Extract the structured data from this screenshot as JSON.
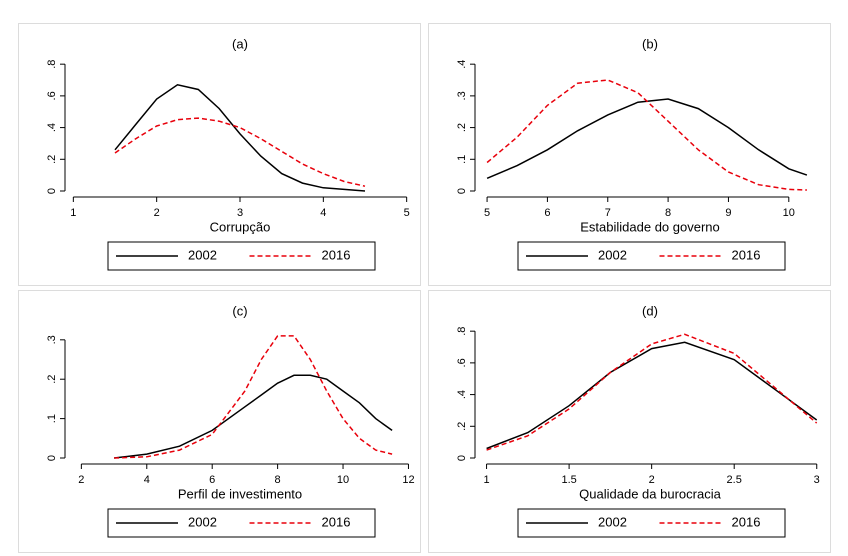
{
  "chart_data": [
    {
      "type": "line",
      "title": "(a)",
      "xlabel": "Corrupção",
      "x": [
        1.5,
        1.75,
        2,
        2.25,
        2.5,
        2.75,
        3,
        3.25,
        3.5,
        3.75,
        4,
        4.25,
        4.5
      ],
      "series": [
        {
          "name": "2002",
          "color": "#000000",
          "line_style": "solid",
          "values": [
            0.26,
            0.42,
            0.58,
            0.67,
            0.64,
            0.52,
            0.36,
            0.22,
            0.11,
            0.05,
            0.02,
            0.01,
            0.0
          ]
        },
        {
          "name": "2016",
          "color": "#e8000b",
          "line_style": "dashed",
          "values": [
            0.24,
            0.33,
            0.41,
            0.45,
            0.46,
            0.44,
            0.4,
            0.33,
            0.25,
            0.17,
            0.11,
            0.06,
            0.03
          ]
        }
      ],
      "xlim": [
        0.9,
        5.1
      ],
      "xticks": [
        1,
        2,
        3,
        4,
        5
      ],
      "ylim": [
        0,
        0.82
      ],
      "yticks": [
        0,
        {
          "value": 0.2,
          "label": ".2"
        },
        {
          "value": 0.4,
          "label": ".4"
        },
        {
          "value": 0.6,
          "label": ".6"
        },
        {
          "value": 0.8,
          "label": ".8"
        }
      ],
      "legend": "bottom"
    },
    {
      "type": "line",
      "title": "(b)",
      "xlabel": "Estabilidade do governo",
      "x": [
        5,
        5.5,
        6,
        6.5,
        7,
        7.5,
        8,
        8.5,
        9,
        9.5,
        10,
        10.3
      ],
      "series": [
        {
          "name": "2002",
          "color": "#000000",
          "line_style": "solid",
          "values": [
            0.04,
            0.08,
            0.13,
            0.19,
            0.24,
            0.28,
            0.29,
            0.26,
            0.2,
            0.13,
            0.07,
            0.05
          ]
        },
        {
          "name": "2016",
          "color": "#e8000b",
          "line_style": "dashed",
          "values": [
            0.09,
            0.17,
            0.27,
            0.34,
            0.35,
            0.31,
            0.22,
            0.13,
            0.06,
            0.02,
            0.005,
            0.003
          ]
        }
      ],
      "xlim": [
        4.8,
        10.6
      ],
      "xticks": [
        5,
        6,
        7,
        8,
        9,
        10
      ],
      "ylim": [
        0,
        0.41
      ],
      "yticks": [
        0,
        {
          "value": 0.1,
          "label": ".1"
        },
        {
          "value": 0.2,
          "label": ".2"
        },
        {
          "value": 0.3,
          "label": ".3"
        },
        {
          "value": 0.4,
          "label": ".4"
        }
      ],
      "legend": "bottom"
    },
    {
      "type": "line",
      "title": "(c)",
      "xlabel": "Perfil de investimento",
      "x": [
        3,
        4,
        5,
        6,
        7,
        7.5,
        8,
        8.5,
        9,
        9.5,
        10,
        10.5,
        11,
        11.5
      ],
      "series": [
        {
          "name": "2002",
          "color": "#000000",
          "line_style": "solid",
          "values": [
            0.0,
            0.01,
            0.03,
            0.07,
            0.13,
            0.16,
            0.19,
            0.21,
            0.21,
            0.2,
            0.17,
            0.14,
            0.1,
            0.07
          ]
        },
        {
          "name": "2016",
          "color": "#e8000b",
          "line_style": "dashed",
          "values": [
            0.0,
            0.003,
            0.02,
            0.06,
            0.17,
            0.25,
            0.31,
            0.31,
            0.25,
            0.17,
            0.1,
            0.05,
            0.02,
            0.01
          ]
        }
      ],
      "xlim": [
        1.5,
        12.2
      ],
      "xticks": [
        2,
        4,
        6,
        8,
        10,
        12
      ],
      "ylim": [
        0,
        0.33
      ],
      "yticks": [
        0,
        {
          "value": 0.1,
          "label": ".1"
        },
        {
          "value": 0.2,
          "label": ".2"
        },
        {
          "value": 0.3,
          "label": ".3"
        }
      ],
      "legend": "bottom"
    },
    {
      "type": "line",
      "title": "(d)",
      "xlabel": "Qualidade da burocracia",
      "x": [
        1,
        1.25,
        1.5,
        1.75,
        2,
        2.2,
        2.5,
        2.75,
        3
      ],
      "series": [
        {
          "name": "2002",
          "color": "#000000",
          "line_style": "solid",
          "values": [
            0.06,
            0.16,
            0.33,
            0.54,
            0.69,
            0.73,
            0.62,
            0.43,
            0.24
          ]
        },
        {
          "name": "2016",
          "color": "#e8000b",
          "line_style": "dashed",
          "values": [
            0.05,
            0.14,
            0.31,
            0.54,
            0.72,
            0.78,
            0.66,
            0.44,
            0.22
          ]
        }
      ],
      "xlim": [
        0.93,
        3.05
      ],
      "xticks": [
        1,
        1.5,
        2,
        2.5,
        3
      ],
      "ylim": [
        0,
        0.82
      ],
      "yticks": [
        0,
        {
          "value": 0.2,
          "label": ".2"
        },
        {
          "value": 0.4,
          "label": ".4"
        },
        {
          "value": 0.6,
          "label": ".6"
        },
        {
          "value": 0.8,
          "label": ".8"
        }
      ],
      "legend": "bottom"
    }
  ]
}
